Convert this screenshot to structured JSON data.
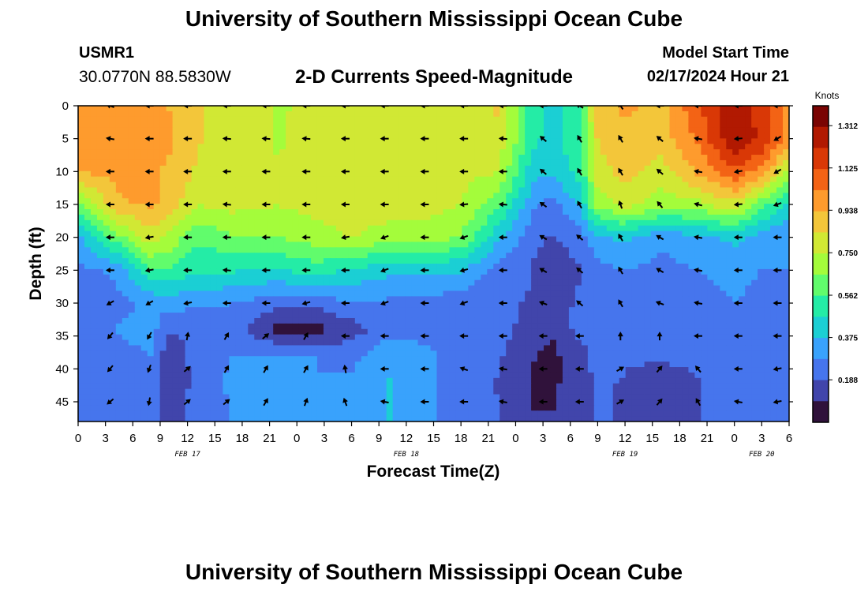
{
  "header": {
    "title": "University of Southern Mississippi Ocean Cube",
    "station_id": "USMR1",
    "coordinates": "30.0770N  88.5830W",
    "plot_title": "2-D Currents Speed-Magnitude",
    "model_label": "Model Start Time",
    "model_time": "02/17/2024 Hour 21"
  },
  "footer": {
    "title": "University of Southern Mississippi Ocean Cube"
  },
  "chart_data": {
    "type": "heatmap",
    "title": "2-D Currents Speed-Magnitude",
    "xlabel": "Forecast Time(Z)",
    "ylabel": "Depth (ft)",
    "x_tick_labels": [
      "0",
      "3",
      "6",
      "9",
      "12",
      "15",
      "18",
      "21",
      "0",
      "3",
      "6",
      "9",
      "12",
      "15",
      "18",
      "21",
      "0",
      "3",
      "6",
      "9",
      "12",
      "15",
      "18",
      "21",
      "0",
      "3",
      "6"
    ],
    "date_labels": [
      {
        "label": "FEB 17",
        "hour": 12
      },
      {
        "label": "FEB 18",
        "hour": 36
      },
      {
        "label": "FEB 19",
        "hour": 60
      },
      {
        "label": "FEB 20",
        "hour": 75
      }
    ],
    "x_range_hours": [
      0,
      78
    ],
    "y_ticks": [
      0,
      5,
      10,
      15,
      20,
      25,
      30,
      35,
      40,
      45
    ],
    "y_range_ft": [
      0,
      48
    ],
    "colorbar": {
      "unit": "Knots",
      "ticks": [
        "1.312",
        "1.125",
        "0.938",
        "0.750",
        "0.562",
        "0.375",
        "0.188"
      ],
      "tick_values": [
        1.312,
        1.125,
        0.938,
        0.75,
        0.562,
        0.375,
        0.188
      ],
      "range": [
        0,
        1.4
      ],
      "colors": [
        "#30123b",
        "#4145ab",
        "#4675ed",
        "#39a2fc",
        "#1bcfd4",
        "#24eca6",
        "#61fc6c",
        "#a4fc3b",
        "#d1e834",
        "#f3c63a",
        "#fe9b2d",
        "#f36315",
        "#d93806",
        "#b11901",
        "#7a0403"
      ]
    },
    "speed_grid_knots": {
      "hours": [
        0,
        4,
        8,
        10,
        13,
        17,
        22,
        26,
        30,
        34,
        38,
        42,
        46,
        50,
        52,
        55,
        57,
        60,
        64,
        68,
        72,
        75,
        78
      ],
      "depths_ft": [
        0,
        5,
        10,
        15,
        20,
        25,
        30,
        34,
        38,
        42,
        48
      ],
      "values": [
        [
          0.95,
          0.95,
          0.95,
          0.93,
          0.85,
          0.78,
          0.74,
          0.76,
          0.78,
          0.8,
          0.78,
          0.8,
          0.85,
          0.5,
          0.42,
          0.55,
          0.88,
          0.95,
          0.9,
          1.1,
          1.3,
          1.15,
          1.0
        ],
        [
          0.95,
          0.95,
          0.95,
          0.95,
          0.85,
          0.78,
          0.74,
          0.78,
          0.8,
          0.8,
          0.8,
          0.8,
          0.82,
          0.5,
          0.42,
          0.55,
          0.85,
          0.92,
          0.88,
          1.05,
          1.3,
          1.2,
          1.0
        ],
        [
          0.95,
          0.95,
          0.95,
          0.92,
          0.83,
          0.78,
          0.75,
          0.78,
          0.8,
          0.8,
          0.8,
          0.78,
          0.75,
          0.4,
          0.4,
          0.5,
          0.8,
          0.88,
          0.8,
          0.95,
          1.1,
          1.0,
          0.7
        ],
        [
          0.6,
          0.92,
          0.95,
          0.9,
          0.75,
          0.78,
          0.75,
          0.78,
          0.8,
          0.8,
          0.78,
          0.75,
          0.6,
          0.3,
          0.25,
          0.38,
          0.7,
          0.78,
          0.7,
          0.72,
          0.82,
          0.6,
          0.45
        ],
        [
          0.35,
          0.6,
          0.8,
          0.72,
          0.58,
          0.64,
          0.66,
          0.7,
          0.75,
          0.7,
          0.72,
          0.65,
          0.4,
          0.2,
          0.18,
          0.22,
          0.35,
          0.4,
          0.3,
          0.35,
          0.4,
          0.33,
          0.28
        ],
        [
          0.25,
          0.3,
          0.55,
          0.55,
          0.48,
          0.48,
          0.45,
          0.52,
          0.45,
          0.4,
          0.4,
          0.38,
          0.25,
          0.18,
          0.15,
          0.18,
          0.25,
          0.28,
          0.25,
          0.28,
          0.3,
          0.28,
          0.28
        ],
        [
          0.22,
          0.25,
          0.3,
          0.32,
          0.3,
          0.28,
          0.22,
          0.22,
          0.28,
          0.26,
          0.25,
          0.22,
          0.2,
          0.18,
          0.15,
          0.2,
          0.22,
          0.2,
          0.28,
          0.26,
          0.28,
          0.26,
          0.26
        ],
        [
          0.22,
          0.28,
          0.32,
          0.2,
          0.2,
          0.24,
          0.05,
          0.05,
          0.14,
          0.24,
          0.25,
          0.22,
          0.22,
          0.15,
          0.1,
          0.22,
          0.24,
          0.22,
          0.24,
          0.25,
          0.26,
          0.26,
          0.26
        ],
        [
          0.22,
          0.25,
          0.28,
          0.12,
          0.22,
          0.28,
          0.3,
          0.28,
          0.25,
          0.35,
          0.3,
          0.25,
          0.2,
          0.1,
          0.07,
          0.15,
          0.22,
          0.2,
          0.22,
          0.22,
          0.24,
          0.24,
          0.24
        ],
        [
          0.22,
          0.25,
          0.25,
          0.1,
          0.22,
          0.3,
          0.3,
          0.28,
          0.3,
          0.38,
          0.3,
          0.25,
          0.18,
          0.08,
          0.07,
          0.15,
          0.2,
          0.18,
          0.1,
          0.18,
          0.24,
          0.22,
          0.22
        ],
        [
          0.22,
          0.25,
          0.25,
          0.15,
          0.22,
          0.28,
          0.28,
          0.28,
          0.3,
          0.38,
          0.3,
          0.25,
          0.2,
          0.1,
          0.1,
          0.15,
          0.2,
          0.18,
          0.12,
          0.18,
          0.24,
          0.22,
          0.22
        ]
      ]
    },
    "current_vectors": {
      "hours": [
        3.5,
        7.8,
        12,
        16.3,
        20.6,
        25,
        29.3,
        33.6,
        38,
        42.3,
        46.6,
        51,
        55,
        59.5,
        63.8,
        68,
        72.4,
        76.7
      ],
      "depths_ft": [
        0,
        5,
        10,
        15,
        20,
        25,
        30,
        35,
        40,
        45
      ],
      "direction_deg": [
        [
          200,
          180,
          180,
          180,
          180,
          180,
          180,
          180,
          180,
          180,
          180,
          180,
          210,
          235,
          180,
          180,
          180,
          180
        ],
        [
          190,
          180,
          180,
          185,
          185,
          185,
          180,
          180,
          180,
          180,
          185,
          220,
          240,
          240,
          220,
          190,
          175,
          150
        ],
        [
          180,
          180,
          180,
          180,
          180,
          180,
          180,
          180,
          180,
          180,
          180,
          220,
          240,
          240,
          220,
          190,
          170,
          150
        ],
        [
          180,
          180,
          180,
          185,
          180,
          180,
          180,
          180,
          180,
          175,
          185,
          215,
          240,
          250,
          230,
          195,
          175,
          160
        ],
        [
          180,
          170,
          180,
          180,
          180,
          180,
          170,
          160,
          180,
          160,
          180,
          210,
          220,
          240,
          210,
          190,
          180,
          180
        ],
        [
          180,
          170,
          180,
          185,
          180,
          180,
          180,
          160,
          180,
          165,
          180,
          210,
          220,
          240,
          210,
          190,
          180,
          180
        ],
        [
          150,
          150,
          170,
          180,
          180,
          165,
          180,
          160,
          180,
          160,
          180,
          200,
          220,
          240,
          200,
          190,
          180,
          180
        ],
        [
          130,
          120,
          280,
          300,
          320,
          300,
          180,
          180,
          180,
          180,
          180,
          180,
          180,
          270,
          270,
          180,
          180,
          180
        ],
        [
          130,
          110,
          320,
          300,
          300,
          300,
          260,
          180,
          180,
          200,
          190,
          180,
          180,
          330,
          310,
          230,
          180,
          170
        ],
        [
          140,
          100,
          320,
          320,
          300,
          290,
          250,
          190,
          180,
          180,
          190,
          180,
          180,
          330,
          310,
          240,
          190,
          170
        ]
      ]
    }
  }
}
